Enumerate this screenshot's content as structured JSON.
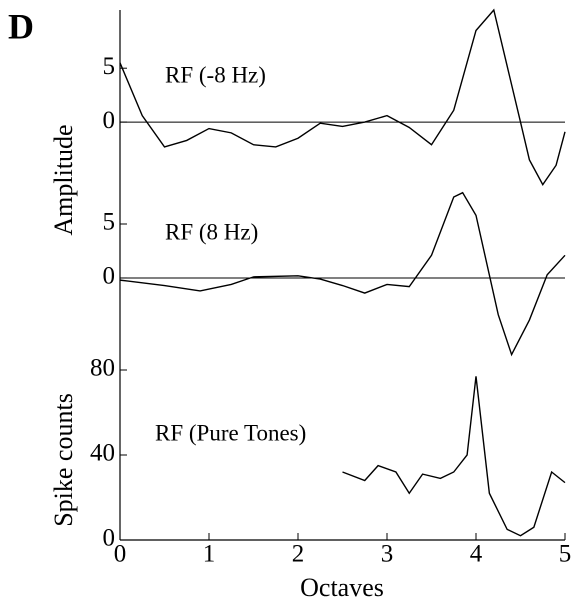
{
  "panel_label": "D",
  "chart_data": [
    {
      "type": "line",
      "annotation": "RF (-8 Hz)",
      "ylabel": "Amplitude",
      "ylim": [
        -6.3,
        10.4
      ],
      "yticks": [
        0,
        5
      ],
      "zero_line": true,
      "color": "#000000",
      "series": [
        {
          "x": [
            0,
            0.25,
            0.5,
            0.75,
            1.0,
            1.25,
            1.5,
            1.75,
            2.0,
            2.25,
            2.5,
            2.75,
            3.0,
            3.25,
            3.5,
            3.75,
            4.0,
            4.2,
            4.5,
            4.6,
            4.75,
            4.9,
            5.0
          ],
          "values": [
            5.5,
            0.6,
            -2.3,
            -1.7,
            -0.6,
            -1.0,
            -2.1,
            -2.3,
            -1.5,
            -0.1,
            -0.4,
            0,
            0.6,
            -0.5,
            -2.1,
            1.1,
            8.5,
            10.4,
            0,
            -3.5,
            -5.8,
            -4.0,
            -0.9
          ]
        }
      ]
    },
    {
      "type": "line",
      "annotation": "RF (8 Hz)",
      "ylim": [
        -7.6,
        8.15
      ],
      "yticks": [
        0,
        5
      ],
      "zero_line": true,
      "color": "#000000",
      "series": [
        {
          "x": [
            0,
            0.5,
            0.9,
            1.25,
            1.5,
            2.0,
            2.25,
            2.5,
            2.75,
            3.0,
            3.25,
            3.5,
            3.75,
            3.85,
            4.0,
            4.25,
            4.4,
            4.6,
            4.8,
            5.0
          ],
          "values": [
            -0.2,
            -0.7,
            -1.2,
            -0.6,
            0.1,
            0.2,
            -0.1,
            -0.7,
            -1.4,
            -0.6,
            -0.8,
            2.1,
            7.5,
            7.9,
            5.8,
            -3.4,
            -7.1,
            -3.9,
            0.3,
            2.1
          ]
        }
      ]
    },
    {
      "type": "line",
      "annotation": "RF (Pure Tones)",
      "ylabel": "Spike counts",
      "xlabel": "Octaves",
      "ylim": [
        0,
        84.7
      ],
      "yticks": [
        0,
        40,
        80
      ],
      "xlim": [
        0,
        5
      ],
      "xticks": [
        0,
        1,
        2,
        3,
        4,
        5
      ],
      "color": "#000000",
      "series": [
        {
          "x": [
            2.5,
            2.75,
            2.9,
            3.1,
            3.25,
            3.4,
            3.6,
            3.75,
            3.9,
            4.0,
            4.15,
            4.35,
            4.5,
            4.65,
            4.85,
            5.0
          ],
          "values": [
            32,
            28,
            35,
            32,
            22,
            31,
            29,
            32,
            40,
            77,
            22,
            5,
            2,
            6,
            32,
            27
          ]
        }
      ]
    }
  ]
}
